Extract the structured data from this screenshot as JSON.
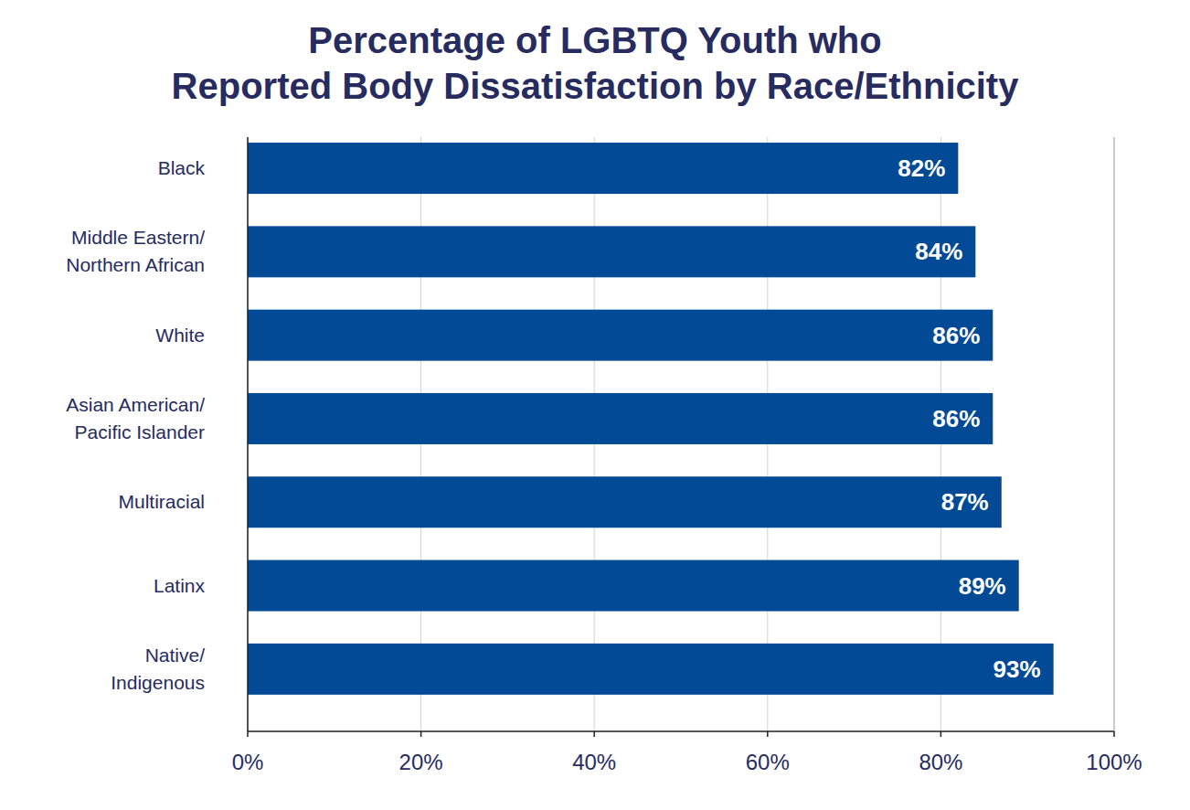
{
  "chart_data": {
    "type": "bar",
    "orientation": "horizontal",
    "title": "Percentage of LGBTQ Youth who Reported Body Dissatisfaction by Race/Ethnicity",
    "categories": [
      "Black",
      "Middle Eastern/ Northern African",
      "White",
      "Asian American/ Pacific Islander",
      "Multiracial",
      "Latinx",
      "Native/ Indigenous"
    ],
    "values": [
      82,
      84,
      86,
      86,
      87,
      89,
      93
    ],
    "value_labels": [
      "82%",
      "84%",
      "86%",
      "86%",
      "87%",
      "89%",
      "93%"
    ],
    "color": "#034a96",
    "xlim": [
      0,
      100
    ],
    "xticks": [
      {
        "value": 0,
        "label": "0%"
      },
      {
        "value": 20,
        "label": "20%"
      },
      {
        "value": 40,
        "label": "40%"
      },
      {
        "value": 60,
        "label": "60%"
      },
      {
        "value": 80,
        "label": "80%"
      },
      {
        "value": 100,
        "label": "100%"
      }
    ],
    "grid": true,
    "data_labels": true
  }
}
